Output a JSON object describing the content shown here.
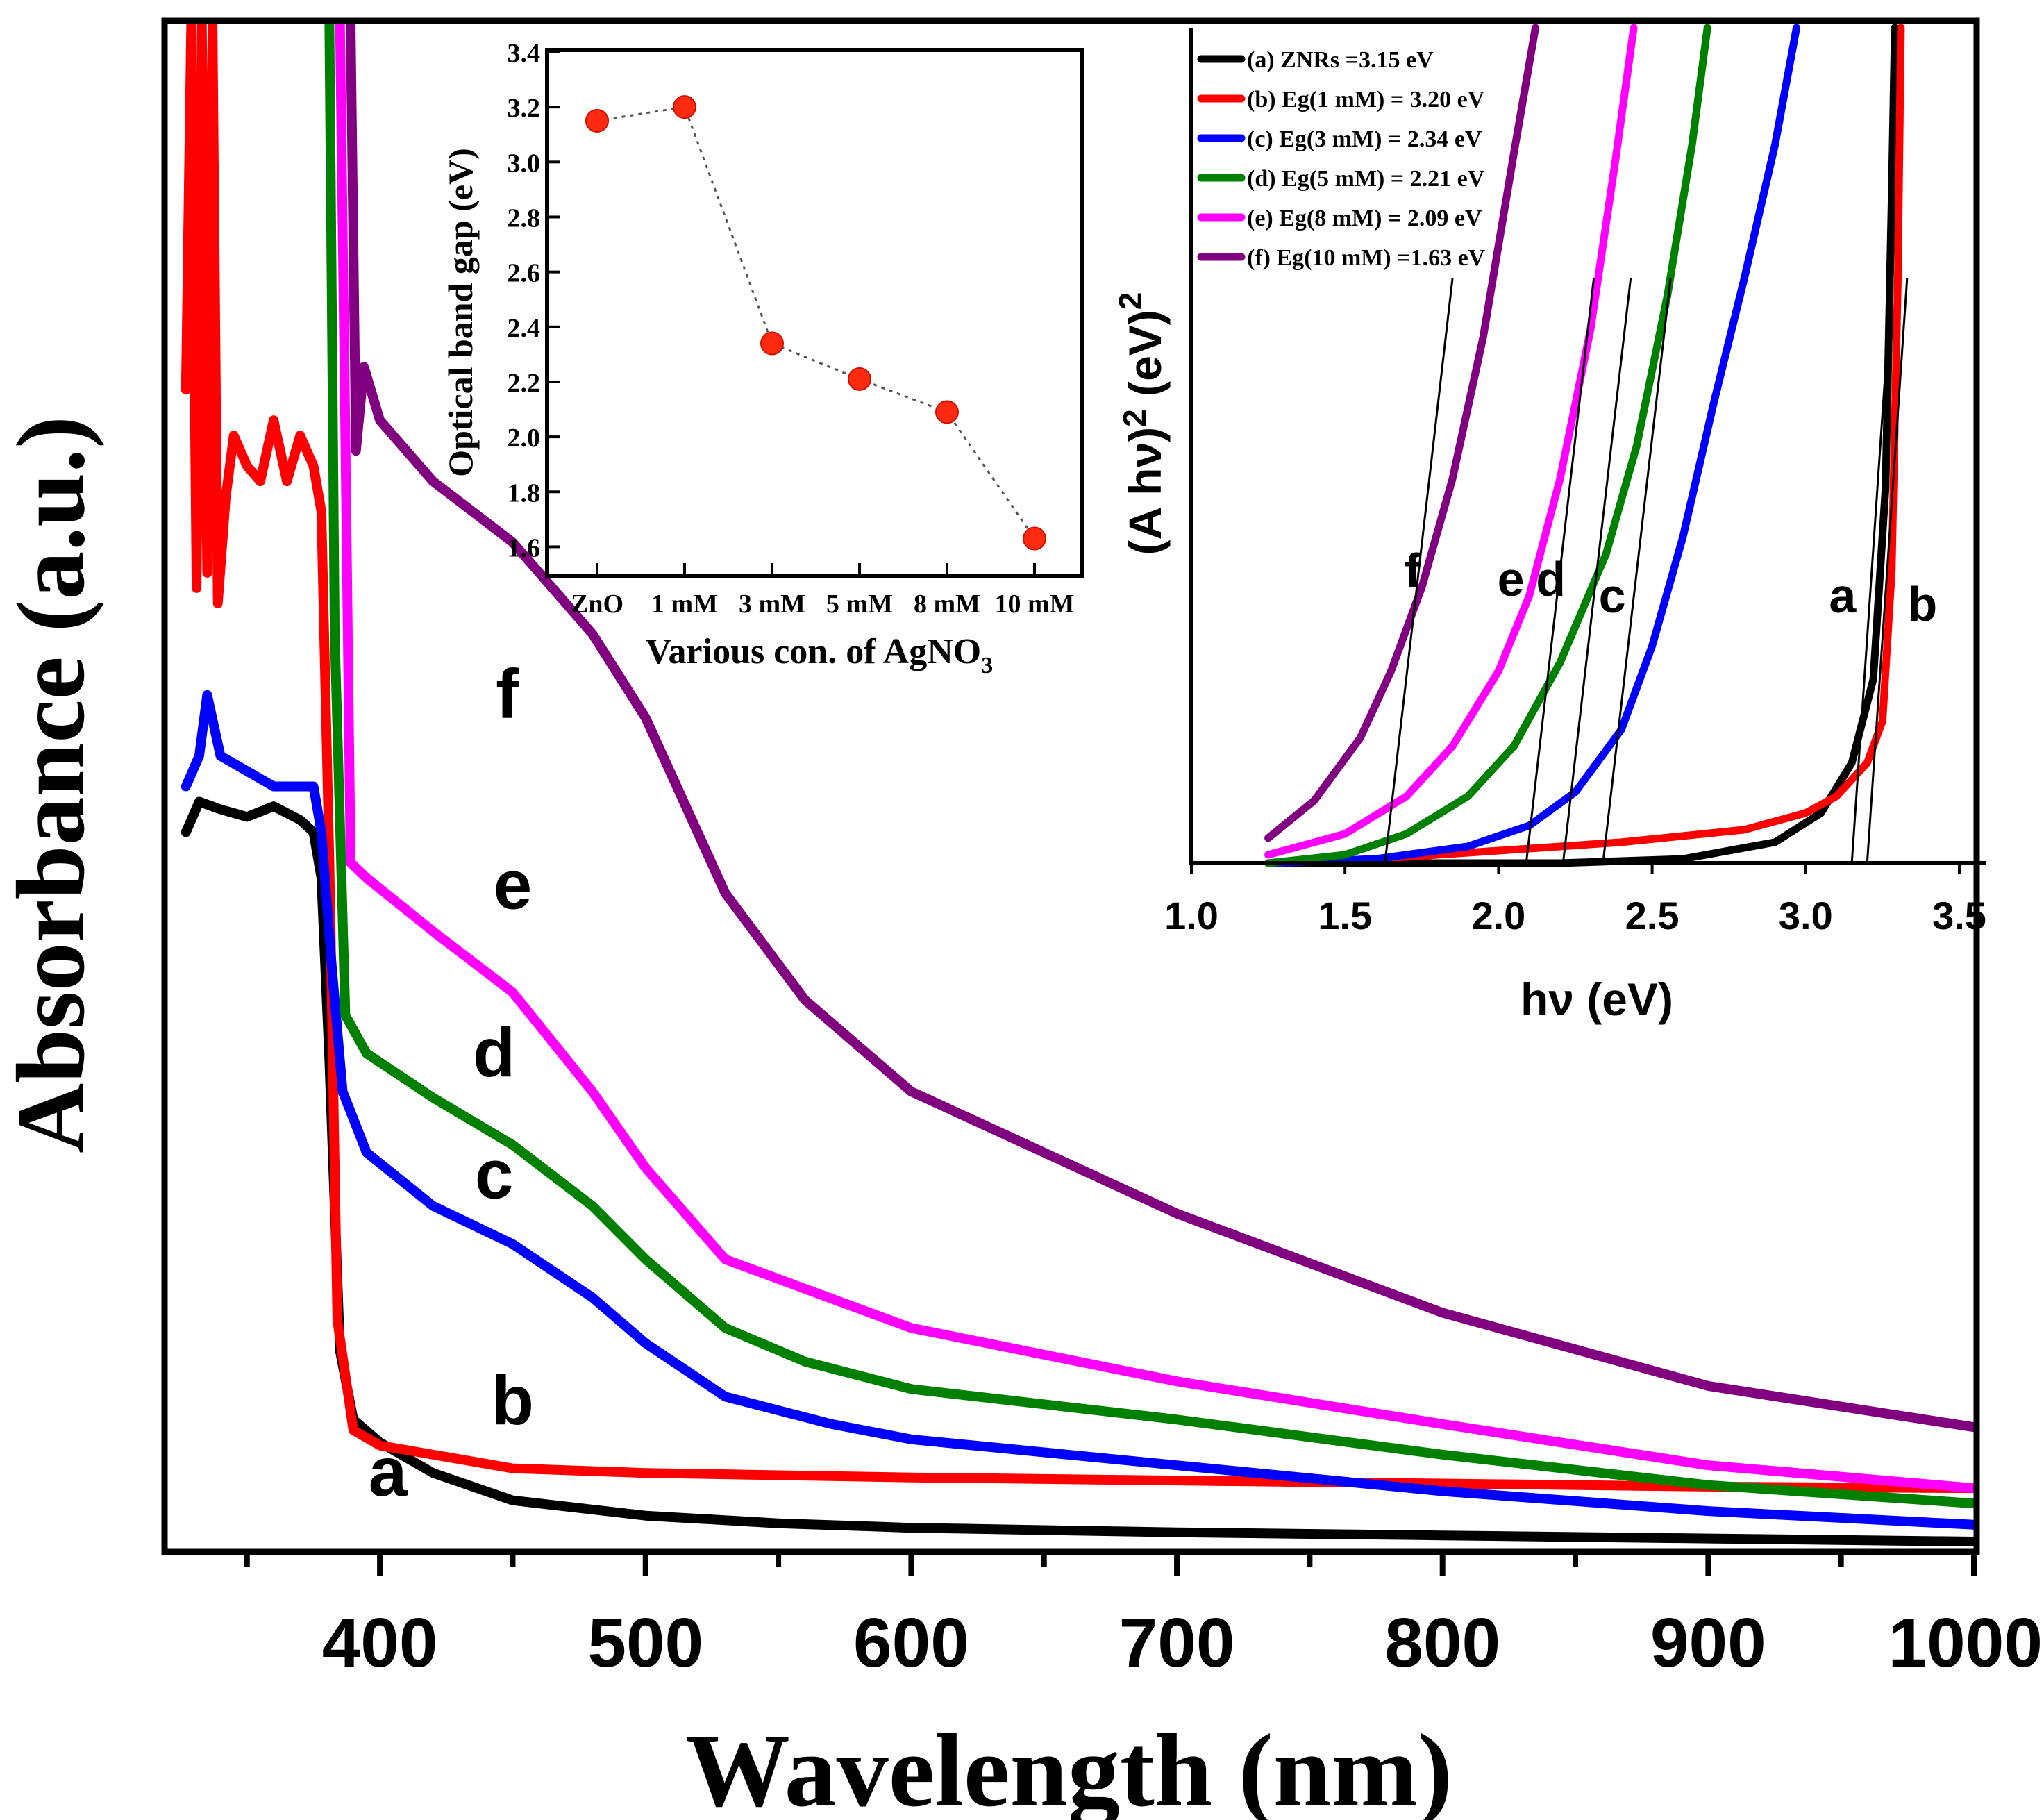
{
  "chart_data": [
    {
      "id": "main",
      "type": "line",
      "title": "",
      "xlabel": "Wavelength (nm)",
      "ylabel": "Absorbance (a.u.)",
      "xlim": [
        320,
        1000
      ],
      "ylim": [
        0,
        1
      ],
      "x_ticks": [
        400,
        500,
        600,
        700,
        800,
        900,
        1000
      ],
      "x_minor_ticks": [
        350,
        450,
        550,
        650,
        750,
        850,
        950
      ],
      "grid": false,
      "series": [
        {
          "name": "a",
          "color": "#000000",
          "label_at": [
            403,
            0.035
          ],
          "points": [
            [
              327,
              0.47
            ],
            [
              332,
              0.49
            ],
            [
              340,
              0.485
            ],
            [
              350,
              0.48
            ],
            [
              360,
              0.487
            ],
            [
              370,
              0.478
            ],
            [
              375,
              0.47
            ],
            [
              378,
              0.44
            ],
            [
              381,
              0.32
            ],
            [
              385,
              0.13
            ],
            [
              390,
              0.085
            ],
            [
              400,
              0.07
            ],
            [
              420,
              0.05
            ],
            [
              450,
              0.032
            ],
            [
              500,
              0.022
            ],
            [
              550,
              0.017
            ],
            [
              600,
              0.014
            ],
            [
              700,
              0.011
            ],
            [
              800,
              0.009
            ],
            [
              900,
              0.007
            ],
            [
              1000,
              0.005
            ]
          ]
        },
        {
          "name": "b",
          "color": "#ff0000",
          "label_at": [
            450,
            0.082
          ],
          "points": [
            [
              327,
              0.76
            ],
            [
              329,
              1.0
            ],
            [
              331,
              0.63
            ],
            [
              333,
              1.0
            ],
            [
              335,
              0.64
            ],
            [
              337,
              1.0
            ],
            [
              339,
              0.62
            ],
            [
              342,
              0.69
            ],
            [
              345,
              0.73
            ],
            [
              350,
              0.71
            ],
            [
              355,
              0.7
            ],
            [
              360,
              0.74
            ],
            [
              365,
              0.7
            ],
            [
              370,
              0.73
            ],
            [
              375,
              0.71
            ],
            [
              378,
              0.68
            ],
            [
              381,
              0.45
            ],
            [
              384,
              0.15
            ],
            [
              390,
              0.078
            ],
            [
              400,
              0.068
            ],
            [
              450,
              0.053
            ],
            [
              500,
              0.05
            ],
            [
              600,
              0.047
            ],
            [
              700,
              0.045
            ],
            [
              800,
              0.043
            ],
            [
              900,
              0.041
            ],
            [
              1000,
              0.04
            ]
          ]
        },
        {
          "name": "c",
          "color": "#0000ff",
          "label_at": [
            443,
            0.23
          ],
          "points": [
            [
              327,
              0.5
            ],
            [
              332,
              0.52
            ],
            [
              335,
              0.56
            ],
            [
              340,
              0.52
            ],
            [
              350,
              0.51
            ],
            [
              360,
              0.5
            ],
            [
              370,
              0.5
            ],
            [
              375,
              0.5
            ],
            [
              378,
              0.47
            ],
            [
              382,
              0.38
            ],
            [
              386,
              0.3
            ],
            [
              395,
              0.26
            ],
            [
              420,
              0.225
            ],
            [
              450,
              0.2
            ],
            [
              480,
              0.165
            ],
            [
              500,
              0.135
            ],
            [
              530,
              0.1
            ],
            [
              570,
              0.082
            ],
            [
              600,
              0.072
            ],
            [
              700,
              0.055
            ],
            [
              800,
              0.038
            ],
            [
              900,
              0.025
            ],
            [
              1000,
              0.016
            ]
          ]
        },
        {
          "name": "d",
          "color": "#008000",
          "label_at": [
            443,
            0.31
          ],
          "points": [
            [
              381,
              1.0
            ],
            [
              383,
              0.6
            ],
            [
              387,
              0.35
            ],
            [
              395,
              0.325
            ],
            [
              420,
              0.296
            ],
            [
              450,
              0.265
            ],
            [
              480,
              0.225
            ],
            [
              500,
              0.19
            ],
            [
              530,
              0.145
            ],
            [
              560,
              0.123
            ],
            [
              600,
              0.105
            ],
            [
              700,
              0.085
            ],
            [
              800,
              0.062
            ],
            [
              900,
              0.042
            ],
            [
              1000,
              0.03
            ]
          ]
        },
        {
          "name": "e",
          "color": "#ff00ff",
          "label_at": [
            450,
            0.42
          ],
          "points": [
            [
              385,
              1.0
            ],
            [
              387,
              0.73
            ],
            [
              389,
              0.45
            ],
            [
              395,
              0.44
            ],
            [
              420,
              0.405
            ],
            [
              450,
              0.365
            ],
            [
              480,
              0.3
            ],
            [
              500,
              0.25
            ],
            [
              530,
              0.19
            ],
            [
              600,
              0.145
            ],
            [
              700,
              0.11
            ],
            [
              800,
              0.082
            ],
            [
              900,
              0.055
            ],
            [
              1000,
              0.04
            ]
          ]
        },
        {
          "name": "f",
          "color": "#800080",
          "label_at": [
            448,
            0.545
          ],
          "points": [
            [
              389,
              1.0
            ],
            [
              391,
              0.72
            ],
            [
              394,
              0.775
            ],
            [
              400,
              0.74
            ],
            [
              420,
              0.7
            ],
            [
              450,
              0.66
            ],
            [
              480,
              0.6
            ],
            [
              500,
              0.545
            ],
            [
              530,
              0.43
            ],
            [
              560,
              0.36
            ],
            [
              600,
              0.3
            ],
            [
              700,
              0.22
            ],
            [
              800,
              0.155
            ],
            [
              900,
              0.107
            ],
            [
              1000,
              0.08
            ]
          ]
        }
      ]
    },
    {
      "id": "inset-bandgap",
      "type": "scatter",
      "title": "",
      "xlabel": "Various con. of AgNO",
      "xlabel_sub": "3",
      "ylabel": "Optical band gap (eV)",
      "categories": [
        "ZnO",
        "1 mM",
        "3 mM",
        "5 mM",
        "8 mM",
        "10 mM"
      ],
      "values": [
        3.15,
        3.2,
        2.34,
        2.21,
        2.09,
        1.63
      ],
      "ylim": [
        1.5,
        3.4
      ],
      "y_ticks": [
        "1.6",
        "1.8",
        "2.0",
        "2.2",
        "2.4",
        "2.6",
        "2.8",
        "3.0",
        "3.2",
        "3.4"
      ],
      "marker_color": "#ff2a0f",
      "line_style": "dotted",
      "grid": false
    },
    {
      "id": "inset-tauc",
      "type": "line",
      "title": "",
      "xlabel": "hν (eV)",
      "ylabel": "(A hν)",
      "ylabel_power": "2",
      "ylabel_unit": "(eV)",
      "ylabel_unit_power": "2",
      "xlim": [
        1.0,
        3.5
      ],
      "ylim": [
        0,
        1
      ],
      "x_ticks": [
        "1.0",
        "1.5",
        "2.0",
        "2.5",
        "3.0",
        "3.5"
      ],
      "legend": [
        {
          "text": "(a) ZNRs =3.15 eV",
          "color": "#000000"
        },
        {
          "text": "(b) Eg(1 mM) = 3.20 eV",
          "color": "#ff0000"
        },
        {
          "text": "(c) Eg(3 mM) = 2.34 eV",
          "color": "#0000ff"
        },
        {
          "text": "(d) Eg(5 mM) = 2.21 eV",
          "color": "#008000"
        },
        {
          "text": "(e) Eg(8 mM) = 2.09 eV",
          "color": "#ff00ff"
        },
        {
          "text": "(f) Eg(10 mM) =1.63 eV",
          "color": "#800080"
        }
      ],
      "series": [
        {
          "name": "a",
          "color": "#000000",
          "eg": 3.15,
          "label_at": [
            3.12,
            0.3
          ],
          "points": [
            [
              1.25,
              0
            ],
            [
              1.6,
              0
            ],
            [
              2.2,
              0
            ],
            [
              2.6,
              0.005
            ],
            [
              2.9,
              0.025
            ],
            [
              3.05,
              0.06
            ],
            [
              3.15,
              0.12
            ],
            [
              3.22,
              0.22
            ],
            [
              3.26,
              0.45
            ],
            [
              3.28,
              0.8
            ],
            [
              3.29,
              1.0
            ]
          ]
        },
        {
          "name": "b",
          "color": "#ff0000",
          "eg": 3.2,
          "label_at": [
            3.38,
            0.29
          ],
          "points": [
            [
              1.25,
              0
            ],
            [
              1.6,
              0.005
            ],
            [
              2.0,
              0.015
            ],
            [
              2.4,
              0.025
            ],
            [
              2.8,
              0.04
            ],
            [
              3.0,
              0.06
            ],
            [
              3.1,
              0.08
            ],
            [
              3.2,
              0.12
            ],
            [
              3.25,
              0.17
            ],
            [
              3.28,
              0.35
            ],
            [
              3.3,
              0.7
            ],
            [
              3.31,
              1.0
            ]
          ]
        },
        {
          "name": "c",
          "color": "#0000ff",
          "eg": 2.34,
          "label_at": [
            2.37,
            0.3
          ],
          "points": [
            [
              1.25,
              0
            ],
            [
              1.6,
              0.005
            ],
            [
              1.9,
              0.02
            ],
            [
              2.1,
              0.045
            ],
            [
              2.25,
              0.085
            ],
            [
              2.4,
              0.16
            ],
            [
              2.5,
              0.26
            ],
            [
              2.6,
              0.39
            ],
            [
              2.7,
              0.55
            ],
            [
              2.8,
              0.7
            ],
            [
              2.9,
              0.86
            ],
            [
              2.97,
              1.0
            ]
          ]
        },
        {
          "name": "d",
          "color": "#008000",
          "eg": 2.21,
          "label_at": [
            2.17,
            0.32
          ],
          "points": [
            [
              1.25,
              0
            ],
            [
              1.5,
              0.01
            ],
            [
              1.7,
              0.035
            ],
            [
              1.9,
              0.08
            ],
            [
              2.05,
              0.14
            ],
            [
              2.2,
              0.24
            ],
            [
              2.35,
              0.37
            ],
            [
              2.45,
              0.5
            ],
            [
              2.55,
              0.68
            ],
            [
              2.63,
              0.86
            ],
            [
              2.68,
              1.0
            ]
          ]
        },
        {
          "name": "e",
          "color": "#ff00ff",
          "eg": 2.09,
          "label_at": [
            2.04,
            0.32
          ],
          "points": [
            [
              1.25,
              0.01
            ],
            [
              1.5,
              0.035
            ],
            [
              1.7,
              0.08
            ],
            [
              1.85,
              0.14
            ],
            [
              2.0,
              0.23
            ],
            [
              2.1,
              0.32
            ],
            [
              2.2,
              0.46
            ],
            [
              2.3,
              0.64
            ],
            [
              2.38,
              0.84
            ],
            [
              2.44,
              1.0
            ]
          ]
        },
        {
          "name": "f",
          "color": "#800080",
          "eg": 1.63,
          "label_at": [
            1.72,
            0.33
          ],
          "points": [
            [
              1.25,
              0.03
            ],
            [
              1.4,
              0.075
            ],
            [
              1.55,
              0.15
            ],
            [
              1.65,
              0.23
            ],
            [
              1.75,
              0.33
            ],
            [
              1.85,
              0.46
            ],
            [
              1.95,
              0.63
            ],
            [
              2.05,
              0.85
            ],
            [
              2.12,
              1.0
            ]
          ]
        }
      ]
    }
  ]
}
